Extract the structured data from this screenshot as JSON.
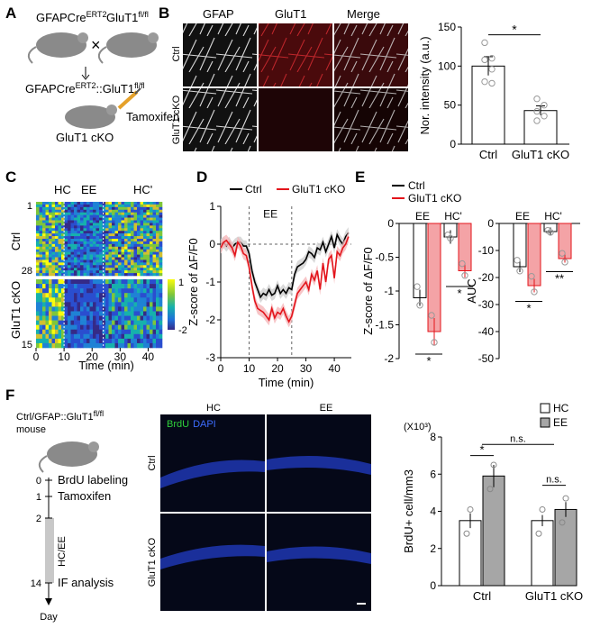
{
  "panels": {
    "A": {
      "letter": "A",
      "mouse1": "GFAPCre",
      "mouse1_sup": "ERT2",
      "mouse2": "GluT1",
      "mouse2_sup": "fl/fl",
      "cross": "×",
      "offspring": "GFAPCre",
      "offspring_sup": "ERT2",
      "offspring_sep": "::GluT1",
      "offspring_sup2": "fl/fl",
      "treatment": "Tamoxifen",
      "result": "GluT1 cKO"
    },
    "B": {
      "letter": "B",
      "col_labels": [
        "GFAP",
        "GluT1",
        "Merge"
      ],
      "row_labels": [
        "Ctrl",
        "GluT1 cKO"
      ]
    },
    "C": {
      "letter": "C",
      "phase_labels": [
        "HC",
        "EE",
        "HC'"
      ],
      "row_labels": [
        "Ctrl",
        "GluT1 cKO"
      ],
      "row_ticks_ctrl": [
        "1",
        "28"
      ],
      "row_ticks_cko": [
        "15"
      ],
      "colorbar_ticks": [
        "1",
        "-2"
      ],
      "x_ticks": [
        "0",
        "10",
        "20",
        "30",
        "40"
      ],
      "xlabel": "Time (min)"
    },
    "D": {
      "letter": "D"
    },
    "E": {
      "letter": "E"
    },
    "F": {
      "letter": "F",
      "mouse": "Ctrl/GFAP::GluT1",
      "mouse_sup": "fl/fl",
      "mouse_word": "mouse",
      "timeline": [
        {
          "day": "0",
          "event": "BrdU labeling"
        },
        {
          "day": "1",
          "event": "Tamoxifen"
        },
        {
          "day": "2",
          "event": ""
        },
        {
          "day": "14",
          "event": "IF analysis"
        }
      ],
      "phase": "HC/EE",
      "axis": "Day",
      "img_cols": [
        "HC",
        "EE"
      ],
      "img_rows": [
        "Ctrl",
        "GluT1 cKO"
      ],
      "stain1": "BrdU",
      "stain2": "DAPI"
    }
  },
  "chart_data": [
    {
      "id": "B-bar",
      "type": "bar",
      "categories": [
        "Ctrl",
        "GluT1 cKO"
      ],
      "values": [
        100,
        43
      ],
      "errors": [
        12,
        6
      ],
      "points": [
        [
          130,
          110,
          108,
          96,
          80,
          78
        ],
        [
          58,
          50,
          42,
          36,
          30
        ]
      ],
      "ylabel": "Nor. intensity (a.u.)",
      "ylim": [
        0,
        150
      ],
      "yticks": [
        0,
        50,
        100,
        150
      ],
      "significance": "*"
    },
    {
      "id": "D-line",
      "type": "line",
      "legend": [
        "Ctrl",
        "GluT1 cKO"
      ],
      "xlabel": "Time (min)",
      "ylabel": "Z-score of ΔF/F0",
      "xlim": [
        0,
        46
      ],
      "ylim": [
        -3,
        1
      ],
      "xticks": [
        0,
        10,
        20,
        30,
        40
      ],
      "yticks": [
        1,
        0,
        -1,
        -2,
        -3
      ],
      "ee_window": [
        10,
        25
      ],
      "ee_label": "EE",
      "series": [
        {
          "name": "Ctrl",
          "color": "#000000",
          "x": [
            0,
            1,
            2,
            3,
            4,
            5,
            6,
            7,
            8,
            9,
            10,
            11,
            12,
            13,
            14,
            15,
            16,
            17,
            18,
            19,
            20,
            21,
            22,
            23,
            24,
            25,
            26,
            27,
            28,
            29,
            30,
            31,
            32,
            33,
            34,
            35,
            36,
            37,
            38,
            39,
            40,
            41,
            42,
            43,
            44,
            45
          ],
          "y": [
            0,
            0.05,
            -0.05,
            0.05,
            -0.1,
            0.0,
            0.05,
            0.05,
            -0.05,
            -0.05,
            -0.25,
            -0.7,
            -1.0,
            -1.2,
            -1.4,
            -1.3,
            -1.35,
            -1.2,
            -1.35,
            -1.3,
            -1.1,
            -1.3,
            -1.2,
            -1.3,
            -1.15,
            -1.2,
            -0.8,
            -0.6,
            -0.55,
            -0.5,
            -0.4,
            -0.2,
            -0.25,
            -0.35,
            -0.1,
            -0.15,
            0.05,
            -0.2,
            0.0,
            0.2,
            -0.1,
            0.25,
            0.1,
            0.0,
            0.2,
            0.3
          ]
        },
        {
          "name": "GluT1 cKO",
          "color": "#e3141b",
          "x": [
            0,
            1,
            2,
            3,
            4,
            5,
            6,
            7,
            8,
            9,
            10,
            11,
            12,
            13,
            14,
            15,
            16,
            17,
            18,
            19,
            20,
            21,
            22,
            23,
            24,
            25,
            26,
            27,
            28,
            29,
            30,
            31,
            32,
            33,
            34,
            35,
            36,
            37,
            38,
            39,
            40,
            41,
            42,
            43,
            44,
            45
          ],
          "y": [
            -0.1,
            0.05,
            0.1,
            0.0,
            -0.1,
            -0.3,
            0.05,
            -0.05,
            -0.25,
            -0.3,
            -0.6,
            -1.1,
            -1.5,
            -1.7,
            -1.75,
            -1.8,
            -1.9,
            -2.0,
            -1.7,
            -1.95,
            -1.8,
            -1.85,
            -1.7,
            -1.9,
            -2.05,
            -1.9,
            -1.6,
            -1.3,
            -1.2,
            -1.1,
            -1.0,
            -1.2,
            -0.8,
            -0.95,
            -0.7,
            -1.2,
            -0.5,
            -1.0,
            -0.4,
            -0.3,
            -0.9,
            -0.2,
            -0.3,
            -0.1,
            0.0,
            0.2
          ]
        }
      ]
    },
    {
      "id": "E-zscore",
      "type": "bar",
      "legend": [
        "Ctrl",
        "GluT1 cKO"
      ],
      "categories": [
        "EE",
        "HC'"
      ],
      "series": [
        {
          "name": "Ctrl",
          "values": [
            -1.1,
            -0.2
          ],
          "errors": [
            0.12,
            0.1
          ]
        },
        {
          "name": "GluT1 cKO",
          "values": [
            -1.6,
            -0.7
          ],
          "errors": [
            0.2,
            0.1
          ]
        }
      ],
      "ylabel": "Z-score of ΔF/F0",
      "ylim": [
        -2,
        0
      ],
      "yticks": [
        0,
        -0.5,
        -1,
        -1.5,
        -2
      ],
      "significance": [
        "*",
        "*"
      ]
    },
    {
      "id": "E-auc",
      "type": "bar",
      "categories": [
        "EE",
        "HC'"
      ],
      "series": [
        {
          "name": "Ctrl",
          "values": [
            -16,
            -3
          ],
          "errors": [
            2,
            1.5
          ]
        },
        {
          "name": "GluT1 cKO",
          "values": [
            -23,
            -13
          ],
          "errors": [
            2.5,
            1.5
          ]
        }
      ],
      "ylabel": "AUC",
      "ylim": [
        -50,
        0
      ],
      "yticks": [
        0,
        -10,
        -20,
        -30,
        -40,
        -50
      ],
      "significance": [
        "*",
        "**"
      ]
    },
    {
      "id": "F-bar",
      "type": "bar",
      "legend": [
        "HC",
        "EE"
      ],
      "categories": [
        "Ctrl",
        "GluT1 cKO"
      ],
      "series": [
        {
          "name": "HC",
          "values": [
            3.5,
            3.5
          ],
          "errors": [
            0.4,
            0.3
          ]
        },
        {
          "name": "EE",
          "values": [
            5.9,
            4.1
          ],
          "errors": [
            0.6,
            0.4
          ]
        }
      ],
      "ylabel": "BrdU+ cell/mm3",
      "yunit": "(X10³)",
      "ylim": [
        0,
        8
      ],
      "yticks": [
        0,
        2,
        4,
        6,
        8
      ],
      "significance": [
        "*",
        "n.s.",
        "n.s."
      ]
    }
  ]
}
